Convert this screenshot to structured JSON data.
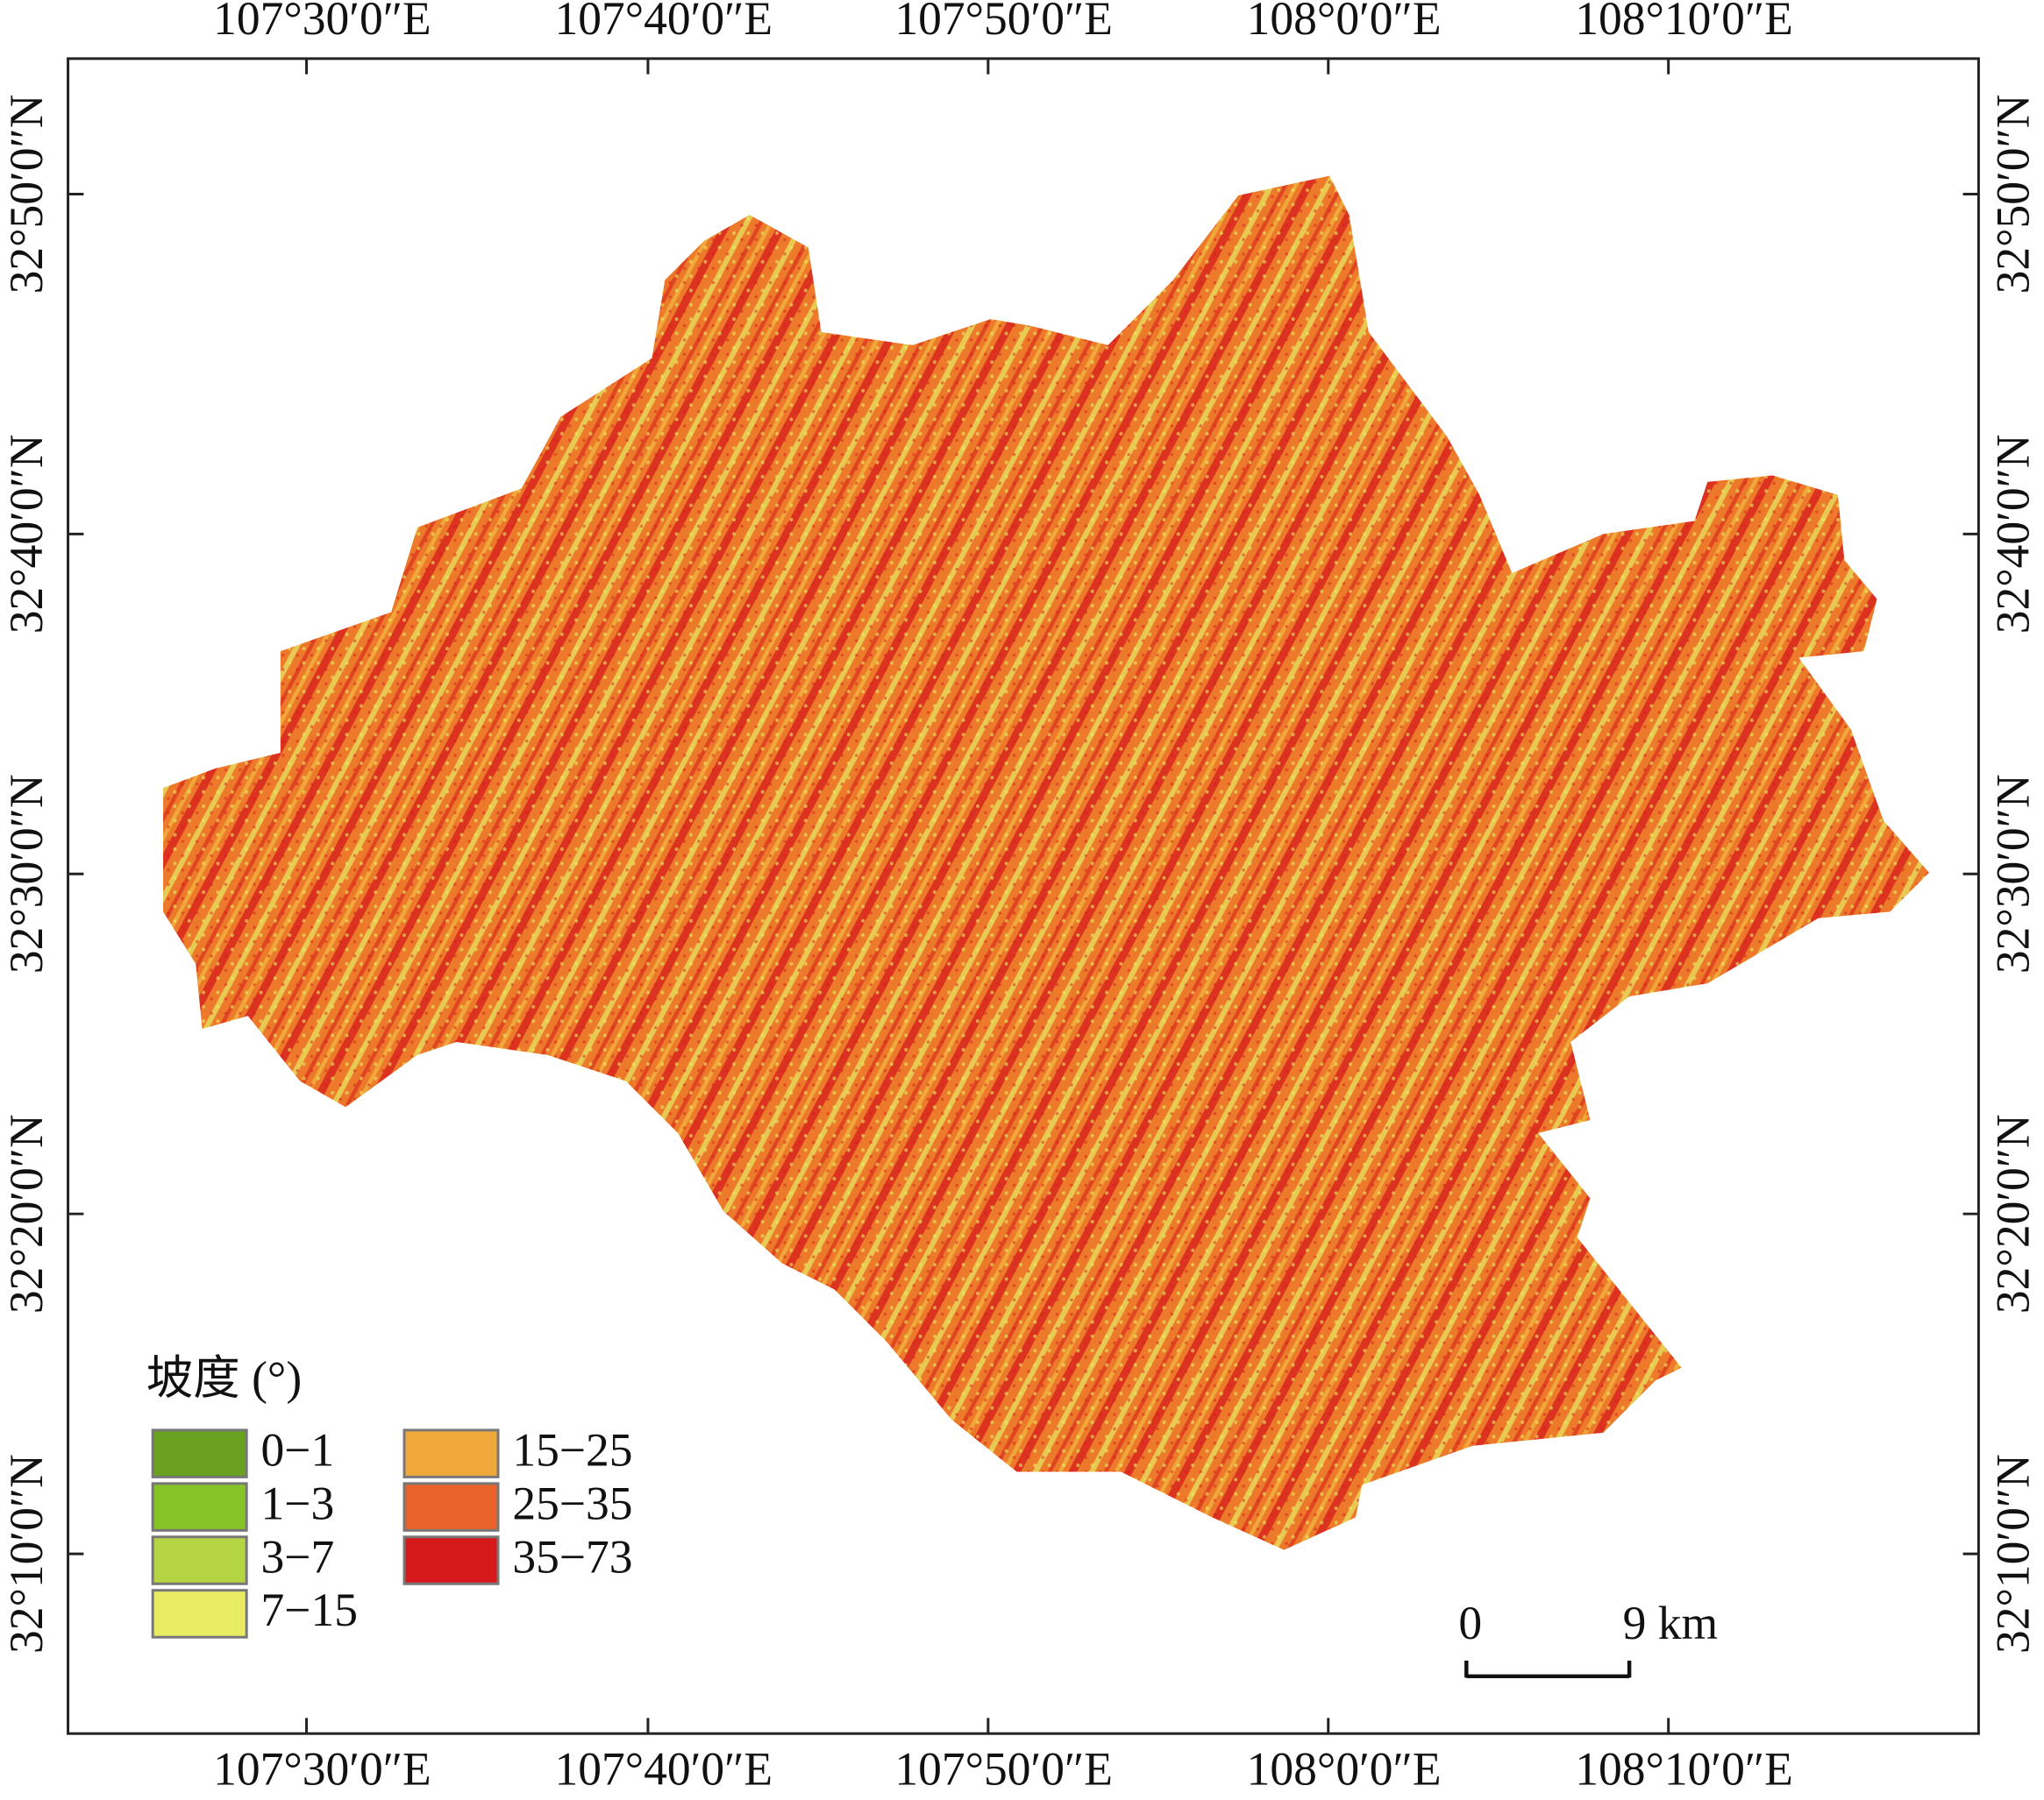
{
  "map": {
    "longitude_labels": [
      "107°30′0″E",
      "107°40′0″E",
      "107°50′0″E",
      "108°0′0″E",
      "108°10′0″E"
    ],
    "latitude_labels": [
      "32°50′0″N",
      "32°40′0″N",
      "32°30′0″N",
      "32°20′0″N",
      "32°10′0″N"
    ],
    "legend": {
      "title": "坡度 (°)",
      "items": [
        {
          "label": "0−1",
          "color": "#6aa121"
        },
        {
          "label": "1−3",
          "color": "#86c326"
        },
        {
          "label": "3−7",
          "color": "#b5d444"
        },
        {
          "label": "7−15",
          "color": "#e8ec63"
        },
        {
          "label": "15−25",
          "color": "#f1a83a"
        },
        {
          "label": "25−35",
          "color": "#e8622a"
        },
        {
          "label": "35−73",
          "color": "#d7191c"
        }
      ]
    },
    "scale_bar": {
      "start_label": "0",
      "end_label": "9 km"
    }
  }
}
